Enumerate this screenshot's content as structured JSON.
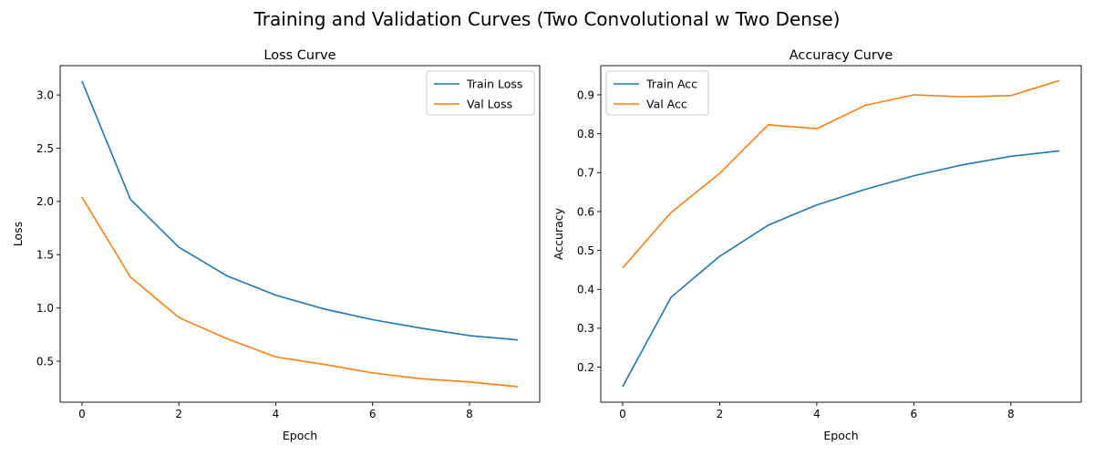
{
  "figure_title": "Training and Validation Curves (Two Convolutional w Two Dense)",
  "chart_data": [
    {
      "type": "line",
      "title": "Loss Curve",
      "xlabel": "Epoch",
      "ylabel": "Loss",
      "x": [
        0,
        1,
        2,
        3,
        4,
        5,
        6,
        7,
        8,
        9
      ],
      "xlim": [
        -0.45,
        9.45
      ],
      "ylim": [
        0.115,
        3.275
      ],
      "xticks": [
        0,
        2,
        4,
        6,
        8
      ],
      "yticks": [
        0.5,
        1.0,
        1.5,
        2.0,
        2.5,
        3.0
      ],
      "xtick_labels": [
        "0",
        "2",
        "4",
        "6",
        "8"
      ],
      "ytick_labels": [
        "0.5",
        "1.0",
        "1.5",
        "2.0",
        "2.5",
        "3.0"
      ],
      "legend_position": "upper right",
      "grid": false,
      "series": [
        {
          "name": "Train Loss",
          "color": "#1f77b4",
          "values": [
            3.13,
            2.02,
            1.57,
            1.3,
            1.12,
            0.99,
            0.89,
            0.81,
            0.74,
            0.7
          ]
        },
        {
          "name": "Val Loss",
          "color": "#ff7f0e",
          "values": [
            2.04,
            1.29,
            0.91,
            0.71,
            0.54,
            0.47,
            0.39,
            0.335,
            0.305,
            0.26
          ]
        }
      ]
    },
    {
      "type": "line",
      "title": "Accuracy Curve",
      "xlabel": "Epoch",
      "ylabel": "Accuracy",
      "x": [
        0,
        1,
        2,
        3,
        4,
        5,
        6,
        7,
        8,
        9
      ],
      "xlim": [
        -0.45,
        9.45
      ],
      "ylim": [
        0.11,
        0.975
      ],
      "xticks": [
        0,
        2,
        4,
        6,
        8
      ],
      "yticks": [
        0.2,
        0.3,
        0.4,
        0.5,
        0.6,
        0.7,
        0.8,
        0.9
      ],
      "xtick_labels": [
        "0",
        "2",
        "4",
        "6",
        "8"
      ],
      "ytick_labels": [
        "0.2",
        "0.3",
        "0.4",
        "0.5",
        "0.6",
        "0.7",
        "0.8",
        "0.9"
      ],
      "legend_position": "upper left",
      "grid": false,
      "series": [
        {
          "name": "Train Acc",
          "color": "#1f77b4",
          "values": [
            0.15,
            0.38,
            0.485,
            0.565,
            0.617,
            0.657,
            0.692,
            0.72,
            0.742,
            0.756
          ]
        },
        {
          "name": "Val Acc",
          "color": "#ff7f0e",
          "values": [
            0.455,
            0.598,
            0.698,
            0.823,
            0.813,
            0.873,
            0.9,
            0.895,
            0.898,
            0.937
          ]
        }
      ]
    }
  ]
}
